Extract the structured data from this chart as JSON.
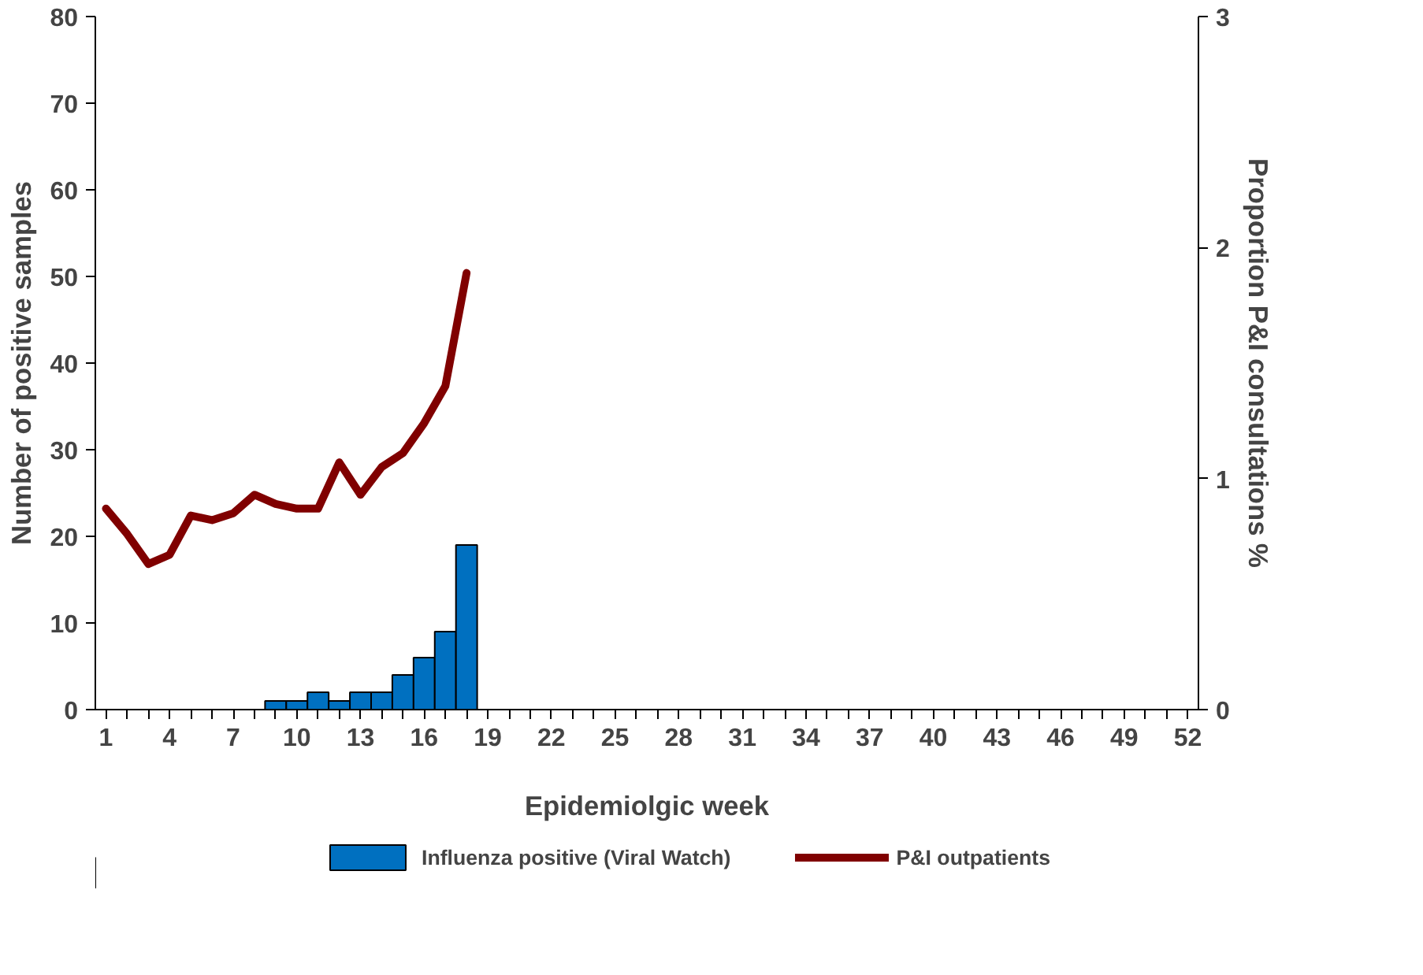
{
  "chart_data": {
    "type": "bar",
    "xlabel": "Epidemiolgic week",
    "ylabel": "Number of positive samples",
    "y2label": "Proportion P&I consultations %",
    "x": [
      1,
      2,
      3,
      4,
      5,
      6,
      7,
      8,
      9,
      10,
      11,
      12,
      13,
      14,
      15,
      16,
      17,
      18
    ],
    "series": [
      {
        "name": "Influenza positive (Viral Watch)",
        "color": "#0070c0",
        "values": [
          null,
          null,
          null,
          null,
          null,
          null,
          null,
          null,
          1,
          1,
          2,
          1,
          2,
          2,
          4,
          6,
          9,
          19
        ]
      },
      {
        "name": "P&I outpatients",
        "color": "#800000",
        "type": "line",
        "axis": "y2",
        "values": [
          0.87,
          0.76,
          0.63,
          0.67,
          0.84,
          0.82,
          0.85,
          0.93,
          0.89,
          0.87,
          0.87,
          1.07,
          0.93,
          1.05,
          1.11,
          1.24,
          1.4,
          1.89
        ]
      }
    ],
    "xlim": [
      0.5,
      52.5
    ],
    "xticks": [
      1,
      {
        "value": 2,
        "label": null
      },
      {
        "value": 3,
        "label": null
      },
      4,
      {
        "value": 5,
        "label": null
      },
      {
        "value": 6,
        "label": null
      },
      7,
      {
        "value": 8,
        "label": null
      },
      {
        "value": 9,
        "label": null
      },
      10,
      {
        "value": 11,
        "label": null
      },
      {
        "value": 12,
        "label": null
      },
      13,
      {
        "value": 14,
        "label": null
      },
      {
        "value": 15,
        "label": null
      },
      16,
      {
        "value": 17,
        "label": null
      },
      {
        "value": 18,
        "label": null
      },
      19,
      {
        "value": 20,
        "label": null
      },
      {
        "value": 21,
        "label": null
      },
      22,
      {
        "value": 23,
        "label": null
      },
      {
        "value": 24,
        "label": null
      },
      25,
      {
        "value": 26,
        "label": null
      },
      {
        "value": 27,
        "label": null
      },
      28,
      {
        "value": 29,
        "label": null
      },
      {
        "value": 30,
        "label": null
      },
      31,
      {
        "value": 32,
        "label": null
      },
      {
        "value": 33,
        "label": null
      },
      34,
      {
        "value": 35,
        "label": null
      },
      {
        "value": 36,
        "label": null
      },
      37,
      {
        "value": 38,
        "label": null
      },
      {
        "value": 39,
        "label": null
      },
      40,
      {
        "value": 41,
        "label": null
      },
      {
        "value": 42,
        "label": null
      },
      43,
      {
        "value": 44,
        "label": null
      },
      {
        "value": 45,
        "label": null
      },
      46,
      {
        "value": 47,
        "label": null
      },
      {
        "value": 48,
        "label": null
      },
      49,
      {
        "value": 50,
        "label": null
      },
      {
        "value": 51,
        "label": null
      },
      52
    ],
    "ylim": [
      0,
      80
    ],
    "yticks": [
      0,
      10,
      20,
      30,
      40,
      50,
      60,
      70,
      80
    ],
    "y2lim": [
      0,
      3
    ],
    "y2ticks": [
      0,
      1,
      2,
      3
    ],
    "grid": false,
    "legend": "bottom",
    "line_style": "solid"
  }
}
